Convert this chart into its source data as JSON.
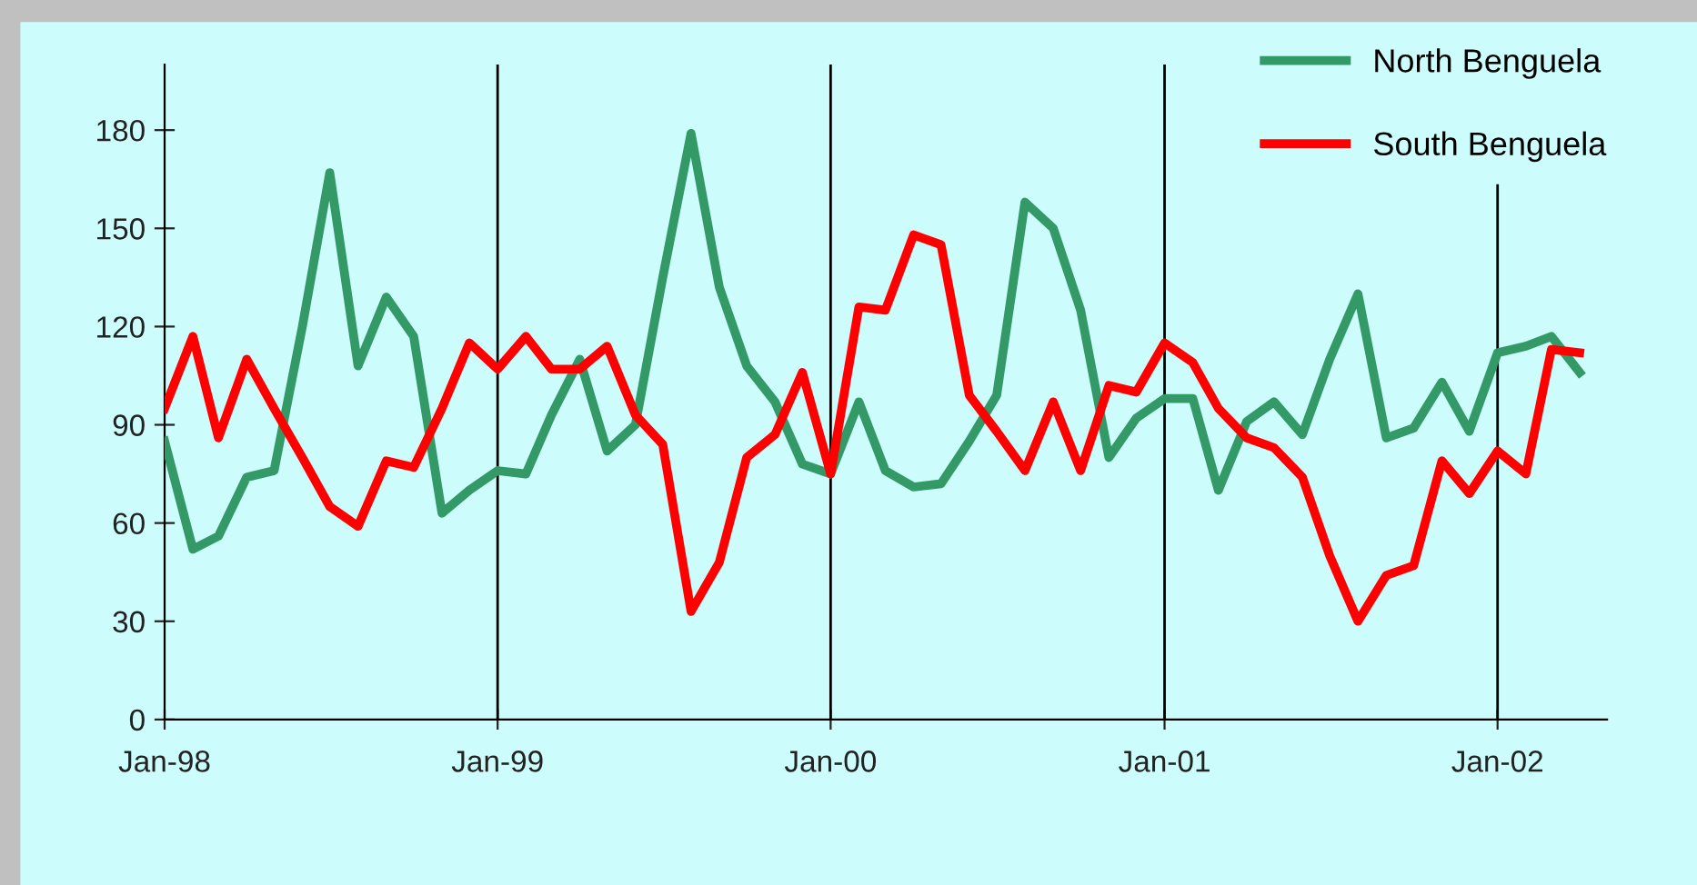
{
  "chart_data": {
    "type": "line",
    "x": [
      "1998-01",
      "1998-02",
      "1998-03",
      "1998-04",
      "1998-05",
      "1998-06",
      "1998-07",
      "1998-08",
      "1998-09",
      "1998-10",
      "1998-11",
      "1998-12",
      "1999-01",
      "1999-02",
      "1999-03",
      "1999-04",
      "1999-05",
      "1999-06",
      "1999-07",
      "1999-08",
      "1999-09",
      "1999-10",
      "1999-11",
      "1999-12",
      "2000-01",
      "2000-02",
      "2000-03",
      "2000-04",
      "2000-05",
      "2000-06",
      "2000-07",
      "2000-08",
      "2000-09",
      "2000-10",
      "2000-11",
      "2000-12",
      "2001-01",
      "2001-02",
      "2001-03",
      "2001-04",
      "2001-05",
      "2001-06",
      "2001-07",
      "2001-08",
      "2001-09",
      "2001-10",
      "2001-11",
      "2001-12",
      "2002-01",
      "2002-02",
      "2002-03",
      "2002-04"
    ],
    "series": [
      {
        "name": "North Benguela",
        "color": "#339966",
        "values": [
          85,
          52,
          56,
          74,
          76,
          120,
          167,
          108,
          129,
          117,
          63,
          70,
          76,
          75,
          93,
          110,
          82,
          90,
          135,
          179,
          132,
          108,
          97,
          78,
          75,
          97,
          76,
          71,
          72,
          85,
          99,
          158,
          150,
          125,
          80,
          92,
          98,
          98,
          70,
          91,
          97,
          87,
          110,
          130,
          86,
          89,
          103,
          88,
          112,
          114,
          117,
          106
        ]
      },
      {
        "name": "South Benguela",
        "color": "#ff0000",
        "values": [
          95,
          117,
          86,
          110,
          95,
          80,
          65,
          59,
          79,
          77,
          95,
          115,
          107,
          117,
          107,
          107,
          114,
          93,
          84,
          33,
          48,
          80,
          87,
          106,
          75,
          126,
          125,
          148,
          145,
          99,
          88,
          76,
          97,
          76,
          102,
          100,
          115,
          109,
          95,
          86,
          83,
          74,
          50,
          30,
          44,
          47,
          79,
          69,
          82,
          75,
          113,
          112
        ]
      }
    ],
    "xlim": [
      "1998-01",
      "2002-05"
    ],
    "xticks": [
      {
        "value": "1998-01",
        "label": "Jan-98"
      },
      {
        "value": "1999-01",
        "label": "Jan-99"
      },
      {
        "value": "2000-01",
        "label": "Jan-00"
      },
      {
        "value": "2001-01",
        "label": "Jan-01"
      },
      {
        "value": "2002-01",
        "label": "Jan-02"
      }
    ],
    "ylim": [
      0,
      200
    ],
    "yticks": [
      0,
      30,
      60,
      90,
      120,
      150,
      180
    ],
    "ref_lines": [
      {
        "axis": "x",
        "value": "1999-01",
        "color": "#000000"
      },
      {
        "axis": "x",
        "value": "2000-01",
        "color": "#000000"
      },
      {
        "axis": "x",
        "value": "2001-01",
        "color": "#000000"
      },
      {
        "axis": "x",
        "value": "2002-01",
        "color": "#000000"
      }
    ],
    "grid": false,
    "legend": "top right",
    "marker": "none",
    "line_style": "solid"
  }
}
